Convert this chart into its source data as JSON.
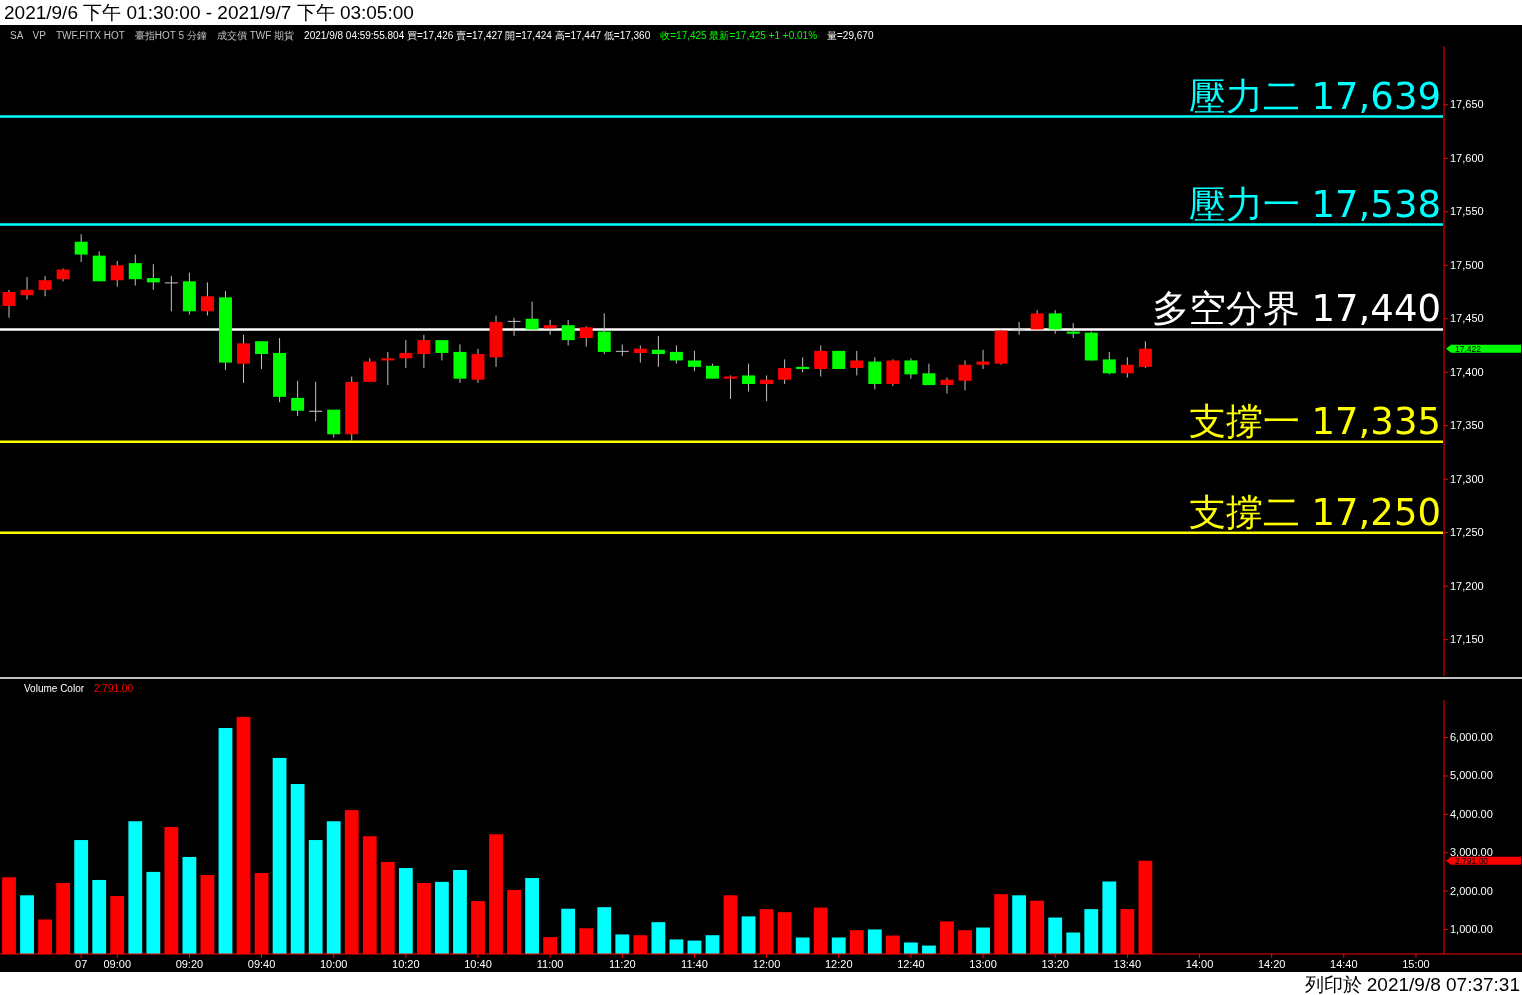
{
  "chart_data": [
    {
      "type": "candlestick",
      "title": "2021/9/6 下午 01:30:00 - 2021/9/7 下午 03:05:00",
      "categories": [
        null,
        null,
        null,
        null,
        null,
        null,
        null,
        null,
        null,
        null,
        null,
        null,
        null,
        null,
        null,
        null,
        null,
        null,
        null,
        null,
        null,
        null,
        null,
        null,
        null,
        null,
        null,
        null,
        null,
        null,
        null,
        null,
        null,
        null,
        null,
        null,
        null,
        null,
        null,
        null,
        null,
        null,
        null,
        null,
        null,
        null,
        null,
        null,
        null,
        null,
        null,
        null,
        null,
        null,
        null,
        null,
        null,
        null,
        null,
        null,
        null,
        null,
        null,
        null,
        null,
        null,
        null,
        null,
        null,
        null,
        null,
        null,
        null,
        null,
        null,
        null,
        null,
        null,
        null,
        null
      ],
      "ohlc": [
        [
          17462,
          17477,
          17451,
          17475
        ],
        [
          17472,
          17489,
          17468,
          17477
        ],
        [
          17477,
          17490,
          17471,
          17486
        ],
        [
          17487,
          17497,
          17485,
          17496
        ],
        [
          17522,
          17529,
          17503,
          17510
        ],
        [
          17509,
          17513,
          17485,
          17485
        ],
        [
          17486,
          17504,
          17480,
          17500
        ],
        [
          17502,
          17510,
          17481,
          17487
        ],
        [
          17488,
          17501,
          17477,
          17484
        ],
        [
          17484,
          17490,
          17457,
          17484
        ],
        [
          17485,
          17493,
          17454,
          17457
        ],
        [
          17457,
          17484,
          17453,
          17471
        ],
        [
          17470,
          17476,
          17402,
          17409
        ],
        [
          17408,
          17435,
          17390,
          17427
        ],
        [
          17429,
          17429,
          17403,
          17417
        ],
        [
          17418,
          17432,
          17372,
          17377
        ],
        [
          17376,
          17392,
          17359,
          17364
        ],
        [
          17364,
          17391,
          17354,
          17363
        ],
        [
          17365,
          17365,
          17339,
          17342
        ],
        [
          17342,
          17396,
          17336,
          17391
        ],
        [
          17391,
          17413,
          17391,
          17410
        ],
        [
          17411,
          17419,
          17388,
          17413
        ],
        [
          17413,
          17430,
          17404,
          17418
        ],
        [
          17417,
          17435,
          17404,
          17430
        ],
        [
          17430,
          17430,
          17411,
          17418
        ],
        [
          17419,
          17426,
          17390,
          17394
        ],
        [
          17393,
          17422,
          17390,
          17417
        ],
        [
          17414,
          17453,
          17405,
          17447
        ],
        [
          17448,
          17451,
          17434,
          17448
        ],
        [
          17450,
          17466,
          17440,
          17440
        ],
        [
          17441,
          17449,
          17435,
          17444
        ],
        [
          17444,
          17449,
          17425,
          17430
        ],
        [
          17432,
          17443,
          17424,
          17442
        ],
        [
          17438,
          17455,
          17417,
          17419
        ],
        [
          17420,
          17426,
          17415,
          17420
        ],
        [
          17418,
          17425,
          17409,
          17422
        ],
        [
          17421,
          17434,
          17405,
          17417
        ],
        [
          17419,
          17425,
          17408,
          17411
        ],
        [
          17411,
          17420,
          17401,
          17405
        ],
        [
          17406,
          17408,
          17394,
          17394
        ],
        [
          17394,
          17397,
          17375,
          17396
        ],
        [
          17397,
          17408,
          17382,
          17389
        ],
        [
          17389,
          17397,
          17373,
          17393
        ],
        [
          17393,
          17412,
          17389,
          17404
        ],
        [
          17405,
          17414,
          17400,
          17403
        ],
        [
          17403,
          17425,
          17396,
          17420
        ],
        [
          17420,
          17420,
          17403,
          17403
        ],
        [
          17404,
          17420,
          17397,
          17411
        ],
        [
          17410,
          17414,
          17384,
          17389
        ],
        [
          17389,
          17412,
          17387,
          17411
        ],
        [
          17411,
          17413,
          17394,
          17398
        ],
        [
          17399,
          17408,
          17388,
          17388
        ],
        [
          17388,
          17395,
          17380,
          17393
        ],
        [
          17392,
          17411,
          17383,
          17407
        ],
        [
          17407,
          17421,
          17403,
          17410
        ],
        [
          17408,
          17441,
          17407,
          17439
        ],
        [
          17440,
          17447,
          17435,
          17440
        ],
        [
          17440,
          17458,
          17440,
          17455
        ],
        [
          17455,
          17458,
          17436,
          17440
        ],
        [
          17438,
          17446,
          17432,
          17436
        ],
        [
          17437,
          17438,
          17411,
          17411
        ],
        [
          17412,
          17419,
          17398,
          17399
        ],
        [
          17399,
          17414,
          17395,
          17407
        ],
        [
          17405,
          17429,
          17404,
          17422
        ],
        null,
        null,
        null,
        null,
        null,
        null,
        null,
        null,
        null,
        null,
        null,
        null,
        null,
        null,
        null,
        null
      ],
      "colors": [
        "#ff0000",
        "#ff0000",
        "#ff0000",
        "#ff0000",
        "#00ff00",
        "#00ff00",
        "#ff0000",
        "#00ff00",
        "#00ff00",
        "#c0c0c0",
        "#00ff00",
        "#ff0000",
        "#00ff00",
        "#ff0000",
        "#00ff00",
        "#00ff00",
        "#00ff00",
        "#c0c0c0",
        "#00ff00",
        "#ff0000",
        "#ff0000",
        "#ff0000",
        "#ff0000",
        "#ff0000",
        "#00ff00",
        "#00ff00",
        "#ff0000",
        "#ff0000",
        "#c0c0c0",
        "#00ff00",
        "#ff0000",
        "#00ff00",
        "#ff0000",
        "#00ff00",
        "#c0c0c0",
        "#ff0000",
        "#00ff00",
        "#00ff00",
        "#00ff00",
        "#00ff00",
        "#ff0000",
        "#00ff00",
        "#ff0000",
        "#ff0000",
        "#00ff00",
        "#ff0000",
        "#00ff00",
        "#ff0000",
        "#00ff00",
        "#ff0000",
        "#00ff00",
        "#00ff00",
        "#ff0000",
        "#ff0000",
        "#ff0000",
        "#ff0000",
        "#c0c0c0",
        "#ff0000",
        "#00ff00",
        "#00ff00",
        "#00ff00",
        "#00ff00",
        "#ff0000",
        "#ff0000",
        null,
        null,
        null,
        null,
        null,
        null,
        null,
        null,
        null,
        null,
        null,
        null,
        null,
        null,
        null,
        null
      ],
      "ylim": [
        17116,
        17705
      ],
      "yticks": [
        {
          "value": 17150,
          "label": "17,150"
        },
        {
          "value": 17200,
          "label": "17,200"
        },
        {
          "value": 17250,
          "label": "17,250"
        },
        {
          "value": 17300,
          "label": "17,300"
        },
        {
          "value": 17350,
          "label": "17,350"
        },
        {
          "value": 17400,
          "label": "17,400"
        },
        {
          "value": 17450,
          "label": "17,450"
        },
        {
          "value": 17500,
          "label": "17,500"
        },
        {
          "value": 17550,
          "label": "17,550"
        },
        {
          "value": 17600,
          "label": "17,600"
        },
        {
          "value": 17650,
          "label": "17,650"
        }
      ],
      "tick_labels": "y",
      "ref_lines": [
        {
          "axis": "y",
          "value": 17639,
          "label": "壓力二 17,639",
          "color": "#00ffff"
        },
        {
          "axis": "y",
          "value": 17538,
          "label": "壓力一 17,538",
          "color": "#00ffff"
        },
        {
          "axis": "y",
          "value": 17440,
          "label": "多空分界 17,440",
          "color": "#ffffff"
        },
        {
          "axis": "y",
          "value": 17335,
          "label": "支撐一 17,335",
          "color": "#ffff00"
        },
        {
          "axis": "y",
          "value": 17250,
          "label": "支撐二 17,250",
          "color": "#ffff00"
        }
      ],
      "annotations": [
        "SA",
        "VP",
        "TWF.FITX HOT",
        "臺指HOT 5 分鐘",
        "成交價 TWF 期貨",
        "2021/9/8 04:59:55.804 買=17,426 賣=17,427 開=17,424 高=17,447 低=17,360",
        "收=17,425 最新=17,425 +1 +0.01%",
        "量=29,670",
        "列印於 2021/9/8 07:37:31",
        "17,422"
      ]
    },
    {
      "type": "bar",
      "categories": [
        null,
        null,
        null,
        null,
        "07",
        null,
        "09:00",
        null,
        null,
        null,
        "09:20",
        null,
        null,
        null,
        "09:40",
        null,
        null,
        null,
        "10:00",
        null,
        null,
        null,
        "10:20",
        null,
        null,
        null,
        "10:40",
        null,
        null,
        null,
        "11:00",
        null,
        null,
        null,
        "11:20",
        null,
        null,
        null,
        "11:40",
        null,
        null,
        null,
        "12:00",
        null,
        null,
        null,
        "12:20",
        null,
        null,
        null,
        "12:40",
        null,
        null,
        null,
        "13:00",
        null,
        null,
        null,
        "13:20",
        null,
        null,
        null,
        "13:40",
        null,
        null,
        null,
        "14:00",
        null,
        null,
        null,
        "14:20",
        null,
        null,
        null,
        "14:40",
        null,
        null,
        null,
        "15:00",
        null
      ],
      "values": [
        2360,
        1890,
        1260,
        2210,
        3330,
        2290,
        1870,
        3820,
        2500,
        3670,
        2890,
        2420,
        6250,
        6540,
        2470,
        5470,
        4790,
        3330,
        3820,
        4110,
        3430,
        2760,
        2600,
        2210,
        2240,
        2550,
        1740,
        3480,
        2030,
        2340,
        800,
        1540,
        1030,
        1580,
        870,
        850,
        1190,
        740,
        710,
        850,
        1890,
        1340,
        1530,
        1450,
        790,
        1570,
        790,
        980,
        1000,
        840,
        660,
        580,
        1210,
        980,
        1050,
        1920,
        1890,
        1750,
        1310,
        920,
        1530,
        2250,
        1530,
        2791,
        null,
        null,
        null,
        null,
        null,
        null,
        null,
        null,
        null,
        null,
        null,
        null,
        null,
        null,
        null,
        null
      ],
      "colors": [
        "#ff0000",
        "#00ffff",
        "#ff0000",
        "#ff0000",
        "#00ffff",
        "#00ffff",
        "#ff0000",
        "#00ffff",
        "#00ffff",
        "#ff0000",
        "#00ffff",
        "#ff0000",
        "#00ffff",
        "#ff0000",
        "#ff0000",
        "#00ffff",
        "#00ffff",
        "#00ffff",
        "#00ffff",
        "#ff0000",
        "#ff0000",
        "#ff0000",
        "#00ffff",
        "#ff0000",
        "#00ffff",
        "#00ffff",
        "#ff0000",
        "#ff0000",
        "#ff0000",
        "#00ffff",
        "#ff0000",
        "#00ffff",
        "#ff0000",
        "#00ffff",
        "#00ffff",
        "#ff0000",
        "#00ffff",
        "#00ffff",
        "#00ffff",
        "#00ffff",
        "#ff0000",
        "#00ffff",
        "#ff0000",
        "#ff0000",
        "#00ffff",
        "#ff0000",
        "#00ffff",
        "#ff0000",
        "#00ffff",
        "#ff0000",
        "#00ffff",
        "#00ffff",
        "#ff0000",
        "#ff0000",
        "#00ffff",
        "#ff0000",
        "#00ffff",
        "#ff0000",
        "#00ffff",
        "#00ffff",
        "#00ffff",
        "#00ffff",
        "#ff0000",
        "#ff0000",
        null,
        null,
        null,
        null,
        null,
        null,
        null,
        null,
        null,
        null,
        null,
        null,
        null,
        null,
        null,
        null
      ],
      "ylim": [
        360,
        6980
      ],
      "yticks": [
        {
          "value": 1000,
          "label": "1,000.00"
        },
        {
          "value": 2000,
          "label": "2,000.00"
        },
        {
          "value": 3000,
          "label": "3,000.00"
        },
        {
          "value": 4000,
          "label": "4,000.00"
        },
        {
          "value": 5000,
          "label": "5,000.00"
        },
        {
          "value": 6000,
          "label": "6,000.00"
        }
      ],
      "annotations": [
        "Volume Color",
        "2,791.00",
        "2,791.00"
      ]
    }
  ]
}
